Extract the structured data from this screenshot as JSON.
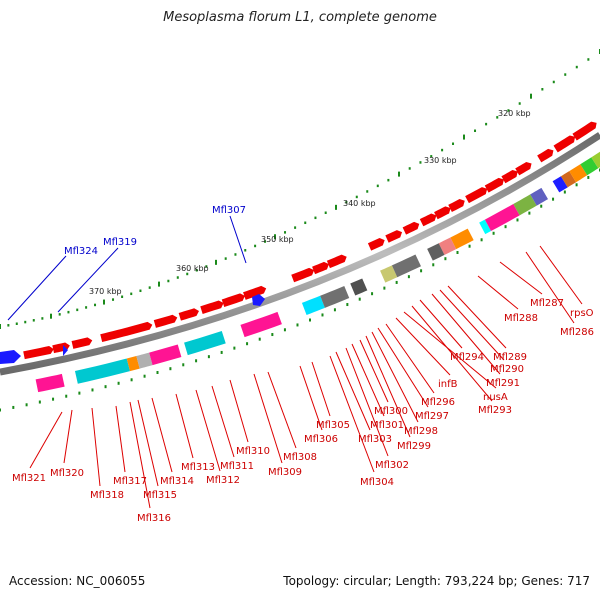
{
  "title": "Mesoplasma florum L1, complete genome",
  "footer": {
    "accession": "Accession: NC_006055",
    "stats": "Topology: circular; Length: 793,224 bp; Genes: 717"
  },
  "scale_labels": [
    "320 kbp",
    "330 kbp",
    "340 kbp",
    "350 kbp",
    "360 kbp",
    "370 kbp"
  ],
  "gene_labels_red": [
    "Mfl321",
    "Mfl320",
    "Mfl318",
    "Mfl317",
    "Mfl316",
    "Mfl315",
    "Mfl314",
    "Mfl313",
    "Mfl312",
    "Mfl311",
    "Mfl310",
    "Mfl309",
    "Mfl308",
    "Mfl306",
    "Mfl305",
    "Mfl304",
    "Mfl303",
    "Mfl302",
    "Mfl301",
    "Mfl300",
    "Mfl299",
    "Mfl298",
    "Mfl297",
    "Mfl296",
    "infB",
    "nusA",
    "Mfl293",
    "Mfl294",
    "Mfl291",
    "Mfl290",
    "Mfl289",
    "Mfl288",
    "Mfl287",
    "Mfl286",
    "rpsO"
  ],
  "gene_labels_blue": [
    "Mfl324",
    "Mfl319",
    "Mfl307"
  ],
  "colors": {
    "backbone": "#8a8a8a",
    "gene_forward": "#ee0000",
    "label_red": "#cc0000",
    "label_blue": "#0000cc",
    "tick": "#1a8a1a"
  }
}
